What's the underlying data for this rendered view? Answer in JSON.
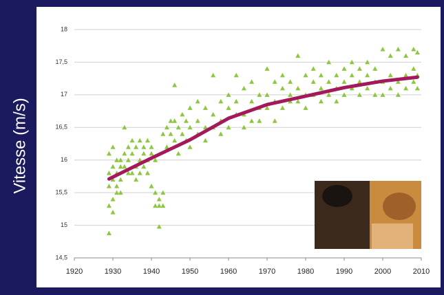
{
  "chart_data": {
    "type": "scatter",
    "ylabel": "Vitesse (m/s)",
    "xlim": [
      1920,
      2010
    ],
    "xticks": [
      1920,
      1930,
      1940,
      1950,
      1960,
      1970,
      1980,
      1990,
      2000,
      2010
    ],
    "ylim": [
      14.5,
      18
    ],
    "yticks": [
      {
        "value": 14.5,
        "label": "14,5"
      },
      15,
      {
        "value": 15.5,
        "label": "15,5"
      },
      16,
      {
        "value": 16.5,
        "label": "16,5"
      },
      17,
      {
        "value": 17.5,
        "label": "17,5"
      },
      18
    ],
    "grid": true,
    "series": [
      {
        "type": "scatter",
        "color": "#8dc63f",
        "x": [
          1929,
          1929,
          1929,
          1929,
          1929,
          1930,
          1930,
          1930,
          1930,
          1930,
          1931,
          1931,
          1931,
          1931,
          1932,
          1932,
          1932,
          1932,
          1933,
          1933,
          1933,
          1934,
          1934,
          1934,
          1935,
          1935,
          1935,
          1936,
          1936,
          1936,
          1937,
          1937,
          1937,
          1938,
          1938,
          1938,
          1939,
          1939,
          1939,
          1940,
          1940,
          1940,
          1941,
          1941,
          1941,
          1942,
          1942,
          1942,
          1943,
          1943,
          1943,
          1944,
          1944,
          1945,
          1945,
          1946,
          1946,
          1946,
          1947,
          1947,
          1948,
          1948,
          1949,
          1949,
          1950,
          1950,
          1950,
          1952,
          1952,
          1952,
          1954,
          1954,
          1954,
          1956,
          1956,
          1956,
          1958,
          1958,
          1958,
          1960,
          1960,
          1960,
          1962,
          1962,
          1962,
          1964,
          1964,
          1964,
          1966,
          1966,
          1966,
          1968,
          1968,
          1968,
          1970,
          1970,
          1970,
          1972,
          1972,
          1972,
          1974,
          1974,
          1974,
          1976,
          1976,
          1976,
          1978,
          1978,
          1978,
          1980,
          1980,
          1980,
          1982,
          1982,
          1982,
          1984,
          1984,
          1984,
          1986,
          1986,
          1986,
          1988,
          1988,
          1988,
          1990,
          1990,
          1990,
          1992,
          1992,
          1992,
          1994,
          1994,
          1994,
          1996,
          1996,
          1996,
          1998,
          1998,
          1998,
          2000,
          2000,
          2000,
          2002,
          2002,
          2002,
          2004,
          2004,
          2004,
          2006,
          2006,
          2006,
          2008,
          2008,
          2008,
          2009,
          2009,
          2009
        ],
        "values": [
          15.3,
          15.6,
          15.8,
          16.1,
          14.88,
          15.4,
          15.7,
          15.9,
          16.2,
          15.2,
          15.5,
          15.8,
          16.0,
          15.6,
          15.7,
          16.0,
          15.9,
          15.5,
          15.9,
          16.1,
          16.5,
          15.8,
          16.0,
          16.2,
          15.8,
          16.1,
          16.3,
          15.9,
          16.2,
          15.7,
          16.0,
          16.3,
          15.8,
          16.1,
          15.9,
          16.2,
          16.0,
          16.3,
          15.8,
          15.6,
          16.1,
          16.2,
          15.3,
          15.5,
          16.0,
          14.98,
          15.4,
          15.3,
          15.3,
          15.5,
          16.4,
          16.2,
          16.5,
          16.4,
          16.6,
          16.3,
          17.15,
          16.6,
          16.1,
          16.5,
          16.4,
          16.7,
          16.3,
          16.6,
          16.2,
          16.5,
          16.8,
          16.6,
          16.4,
          16.9,
          16.5,
          16.8,
          16.3,
          16.7,
          17.3,
          16.5,
          16.6,
          16.9,
          16.4,
          16.8,
          16.5,
          17.0,
          16.9,
          17.3,
          16.7,
          16.7,
          17.1,
          16.5,
          16.9,
          16.6,
          17.2,
          16.8,
          17.0,
          16.6,
          17.0,
          17.4,
          16.8,
          16.9,
          17.2,
          16.6,
          17.1,
          16.8,
          17.3,
          17.0,
          16.9,
          17.2,
          17.6,
          17.1,
          16.9,
          17.0,
          17.3,
          16.8,
          17.2,
          17.0,
          17.4,
          17.1,
          17.3,
          16.9,
          17.2,
          17.0,
          17.5,
          17.1,
          17.3,
          16.9,
          17.2,
          17.0,
          17.4,
          17.3,
          17.1,
          17.5,
          17.2,
          17.4,
          17.0,
          17.1,
          17.3,
          17.5,
          17.2,
          17.0,
          17.4,
          17.7,
          17.2,
          17.0,
          17.6,
          17.1,
          17.3,
          17.7,
          17.2,
          17.0,
          17.6,
          17.3,
          17.1,
          17.7,
          17.2,
          17.4,
          17.65,
          17.1,
          17.3
        ]
      },
      {
        "type": "line",
        "color": "#a3195b",
        "x": [
          1929,
          1940,
          1950,
          1960,
          1970,
          1980,
          1990,
          2000,
          2009
        ],
        "values": [
          15.71,
          16.03,
          16.31,
          16.64,
          16.85,
          16.98,
          17.11,
          17.21,
          17.27
        ]
      }
    ]
  }
}
